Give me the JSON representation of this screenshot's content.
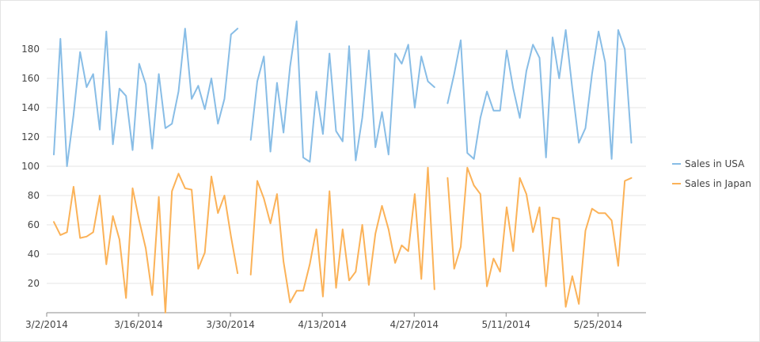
{
  "chart_data": {
    "type": "line",
    "x_start": "2014-03-02",
    "y_ticks": [
      20,
      40,
      60,
      80,
      100,
      120,
      140,
      160,
      180
    ],
    "ylim": [
      0,
      200
    ],
    "x_tick_labels": [
      {
        "date": "2014-03-02",
        "label": "3/2/2014"
      },
      {
        "date": "2014-03-16",
        "label": "3/16/2014"
      },
      {
        "date": "2014-03-30",
        "label": "3/30/2014"
      },
      {
        "date": "2014-04-13",
        "label": "4/13/2014"
      },
      {
        "date": "2014-04-27",
        "label": "4/27/2014"
      },
      {
        "date": "2014-05-11",
        "label": "5/11/2014"
      },
      {
        "date": "2014-05-25",
        "label": "5/25/2014"
      }
    ],
    "grid": true,
    "legend_position": "right",
    "series": [
      {
        "name": "Sales in USA",
        "color": "#88bde6",
        "values": [
          108,
          187,
          100,
          135,
          178,
          154,
          163,
          125,
          192,
          115,
          153,
          148,
          111,
          170,
          156,
          112,
          163,
          126,
          129,
          151,
          194,
          146,
          155,
          139,
          160,
          129,
          146,
          190,
          194,
          null,
          118,
          158,
          175,
          110,
          157,
          123,
          168,
          199,
          106,
          103,
          151,
          122,
          177,
          124,
          117,
          182,
          104,
          133,
          179,
          113,
          137,
          108,
          177,
          170,
          183,
          140,
          175,
          158,
          154,
          null,
          143,
          163,
          186,
          109,
          105,
          133,
          151,
          138,
          138,
          179,
          153,
          133,
          165,
          183,
          174,
          106,
          188,
          160,
          193,
          153,
          116,
          126,
          163,
          192,
          171,
          105,
          193,
          180,
          116
        ]
      },
      {
        "name": "Sales in Japan",
        "color": "#fbb258",
        "values": [
          62,
          53,
          55,
          86,
          51,
          52,
          55,
          80,
          33,
          66,
          50,
          10,
          85,
          63,
          44,
          12,
          79,
          0,
          83,
          95,
          85,
          84,
          30,
          41,
          93,
          68,
          80,
          52,
          27,
          null,
          26,
          90,
          78,
          61,
          81,
          35,
          7,
          15,
          15,
          33,
          57,
          11,
          83,
          17,
          57,
          22,
          28,
          60,
          19,
          54,
          73,
          57,
          34,
          46,
          42,
          81,
          23,
          99,
          16,
          null,
          92,
          30,
          45,
          99,
          87,
          81,
          18,
          37,
          28,
          72,
          42,
          92,
          81,
          55,
          72,
          18,
          65,
          64,
          4,
          25,
          6,
          56,
          71,
          68,
          68,
          63,
          32,
          90,
          92
        ]
      }
    ]
  }
}
